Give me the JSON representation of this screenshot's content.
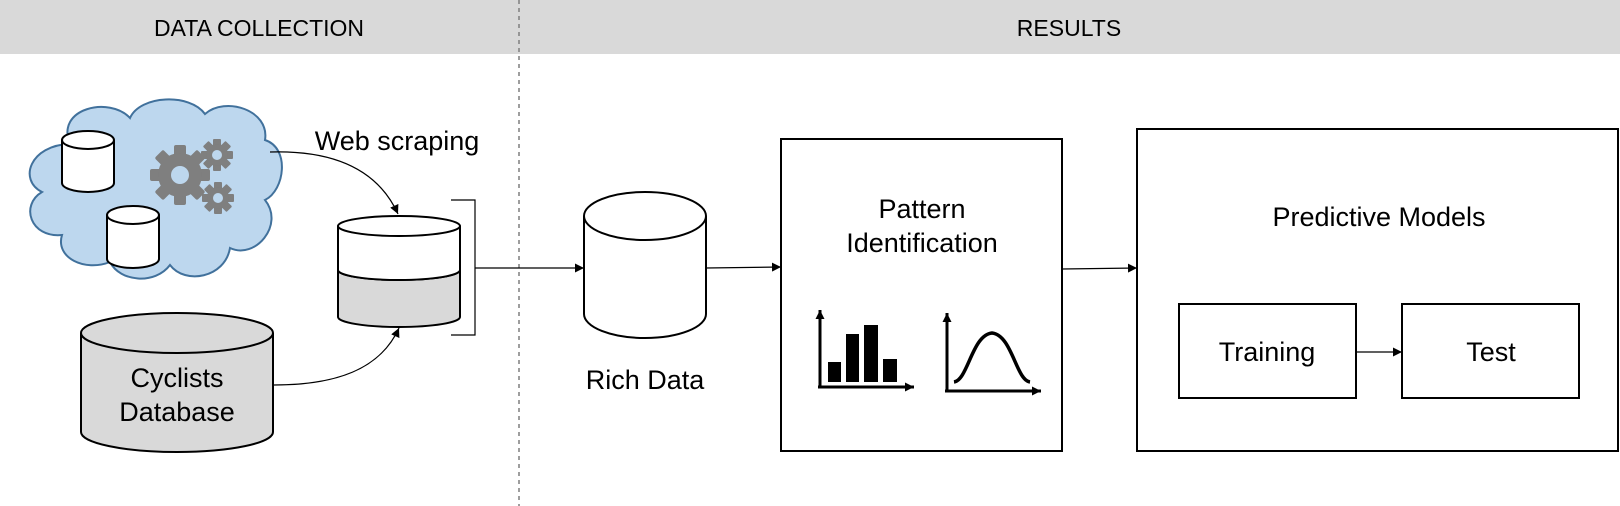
{
  "sections": {
    "left_title": "DATA COLLECTION",
    "right_title": "RESULTS"
  },
  "flow": {
    "scraping_label": "Web scraping",
    "database_line1": "Cyclists",
    "database_line2": "Database",
    "rich_data_label": "Rich Data",
    "pattern_line1": "Pattern",
    "pattern_line2": "Identification",
    "models_title": "Predictive Models",
    "training_label": "Training",
    "test_label": "Test"
  },
  "icons": {
    "cloud": "cloud-icon",
    "gears": "gears-icon",
    "histogram": "histogram-icon",
    "bell_curve": "bell-curve-icon"
  },
  "colors": {
    "header_band": "#d9d9d9",
    "cloud_fill": "#bdd7ee",
    "cloud_stroke": "#41719c",
    "gear_fill": "#7f7f7f",
    "db_fill": "#d9d9d9"
  }
}
